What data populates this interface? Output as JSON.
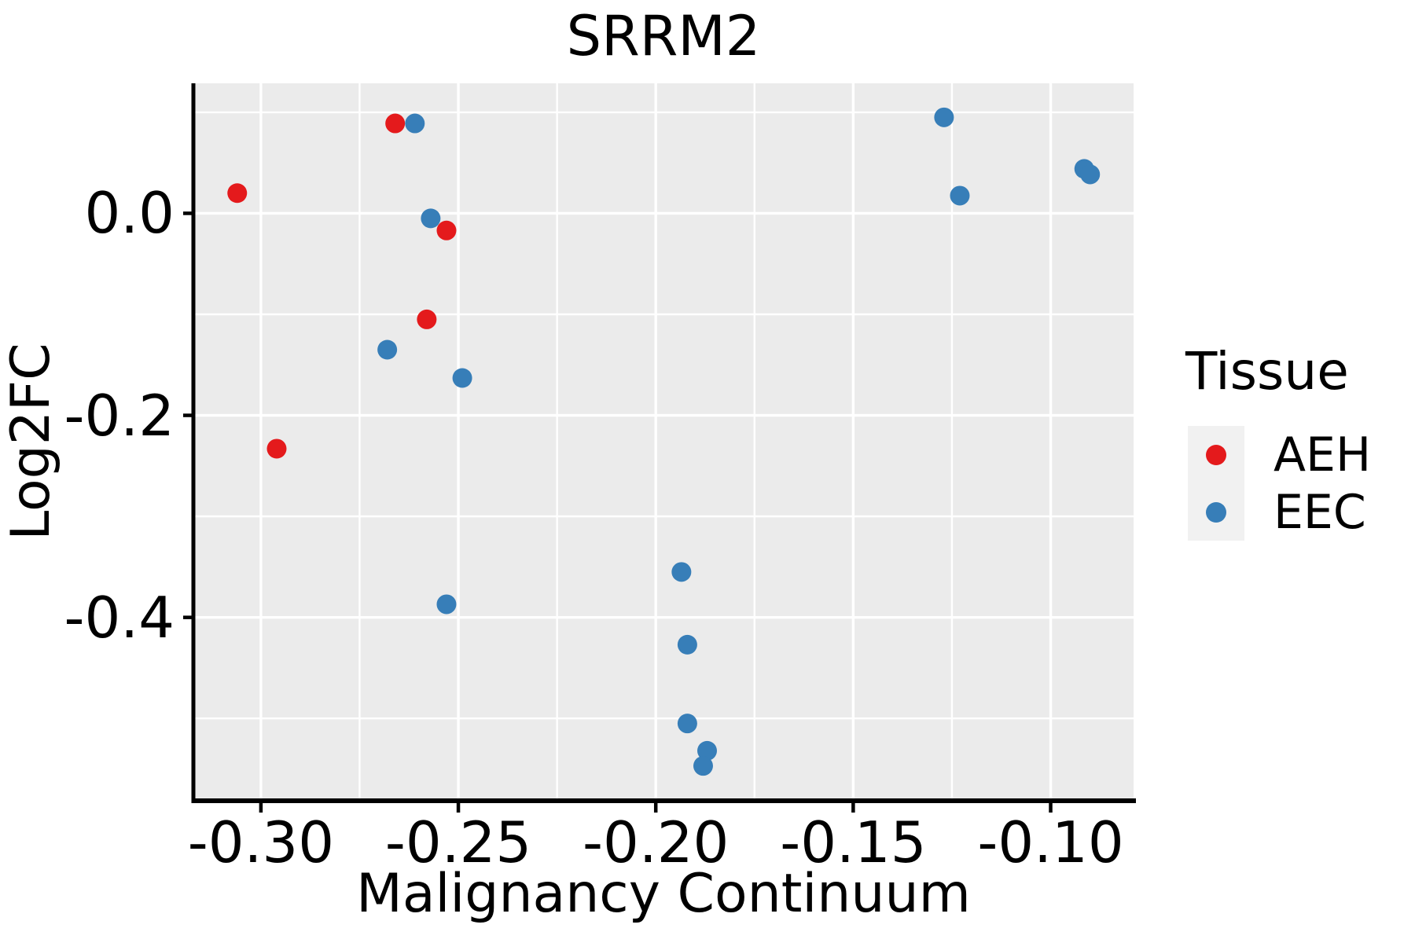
{
  "title": "SRRM2",
  "axes": {
    "x": {
      "label": "Malignancy Continuum",
      "ticks": [
        "-0.30",
        "-0.25",
        "-0.20",
        "-0.15",
        "-0.10"
      ]
    },
    "y": {
      "label": "Log2FC",
      "ticks": [
        "0.0",
        "-0.2",
        "-0.4"
      ]
    }
  },
  "legend": {
    "title": "Tissue",
    "items": [
      {
        "label": "AEH",
        "color": "#E41A1C"
      },
      {
        "label": "EEC",
        "color": "#377EB8"
      }
    ]
  },
  "colors": {
    "panel_background": "#EBEBEB",
    "gridline": "#FFFFFF",
    "axis": "#000000",
    "text": "#000000",
    "legend_key_background": "#F1F1F1",
    "aeh": "#E41A1C",
    "eec": "#377EB8"
  },
  "chart_data": {
    "type": "scatter",
    "title": "SRRM2",
    "xlabel": "Malignancy Continuum",
    "ylabel": "Log2FC",
    "xlim": [
      -0.3171,
      -0.079
    ],
    "ylim": [
      -0.5815,
      0.1287
    ],
    "x_major_breaks": [
      -0.3,
      -0.25,
      -0.2,
      -0.15,
      -0.1
    ],
    "x_minor_breaks": [
      -0.275,
      -0.225,
      -0.175,
      -0.125
    ],
    "y_major_breaks": [
      0.0,
      -0.2,
      -0.4
    ],
    "y_minor_breaks": [
      0.1,
      -0.1,
      -0.3,
      -0.5
    ],
    "grid": true,
    "legend_position": "right",
    "marker_radius_px": 12.5,
    "series": [
      {
        "name": "AEH",
        "color": "#E41A1C",
        "points": [
          [
            -0.306,
            0.02
          ],
          [
            -0.266,
            0.089
          ],
          [
            -0.253,
            -0.017
          ],
          [
            -0.258,
            -0.105
          ],
          [
            -0.296,
            -0.233
          ]
        ]
      },
      {
        "name": "EEC",
        "color": "#377EB8",
        "points": [
          [
            -0.261,
            0.089
          ],
          [
            -0.257,
            -0.005
          ],
          [
            -0.268,
            -0.135
          ],
          [
            -0.249,
            -0.163
          ],
          [
            -0.253,
            -0.387
          ],
          [
            -0.1935,
            -0.355
          ],
          [
            -0.192,
            -0.427
          ],
          [
            -0.192,
            -0.505
          ],
          [
            -0.187,
            -0.532
          ],
          [
            -0.188,
            -0.547
          ],
          [
            -0.127,
            0.095
          ],
          [
            -0.123,
            0.0175
          ],
          [
            -0.0915,
            0.044
          ],
          [
            -0.09,
            0.0385
          ]
        ]
      }
    ]
  }
}
